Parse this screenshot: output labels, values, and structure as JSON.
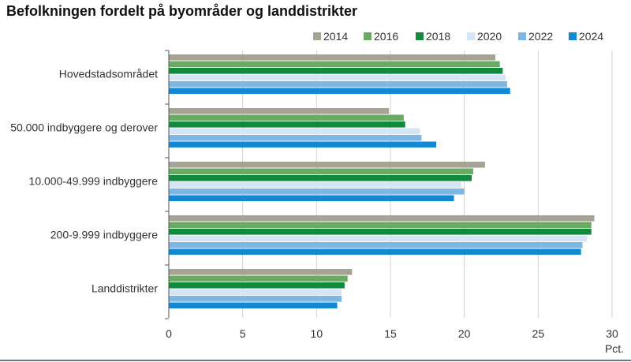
{
  "title": "Befolkningen fordelt på byområder og landdistrikter",
  "chart_data": {
    "type": "bar",
    "orientation": "horizontal",
    "title": "Befolkningen fordelt på byområder og landdistrikter",
    "xlabel": "Pct.",
    "ylabel": "",
    "xlim": [
      0,
      30
    ],
    "x_ticks": [
      "0",
      "5",
      "10",
      "15",
      "20",
      "25",
      "30"
    ],
    "grid": "vertical",
    "legend_position": "top-right",
    "categories": [
      "Hovedstadsområdet",
      "50.000 indbyggere og derover",
      "10.000-49.999 indbyggere",
      "200-9.999 indbyggere",
      "Landdistrikter"
    ],
    "series": [
      {
        "name": "2014",
        "color": "#a7a394",
        "values": [
          22.1,
          14.9,
          21.4,
          28.8,
          12.4
        ]
      },
      {
        "name": "2016",
        "color": "#6aaa64",
        "values": [
          22.4,
          15.9,
          20.6,
          28.6,
          12.1
        ]
      },
      {
        "name": "2018",
        "color": "#128a3e",
        "values": [
          22.6,
          16.0,
          20.5,
          28.6,
          11.9
        ]
      },
      {
        "name": "2020",
        "color": "#d3e6f7",
        "values": [
          22.8,
          17.0,
          19.8,
          28.3,
          11.7
        ]
      },
      {
        "name": "2022",
        "color": "#7db8e5",
        "values": [
          22.9,
          17.1,
          20.0,
          28.0,
          11.7
        ]
      },
      {
        "name": "2024",
        "color": "#1488d0",
        "values": [
          23.1,
          18.1,
          19.3,
          27.9,
          11.4
        ]
      }
    ]
  }
}
